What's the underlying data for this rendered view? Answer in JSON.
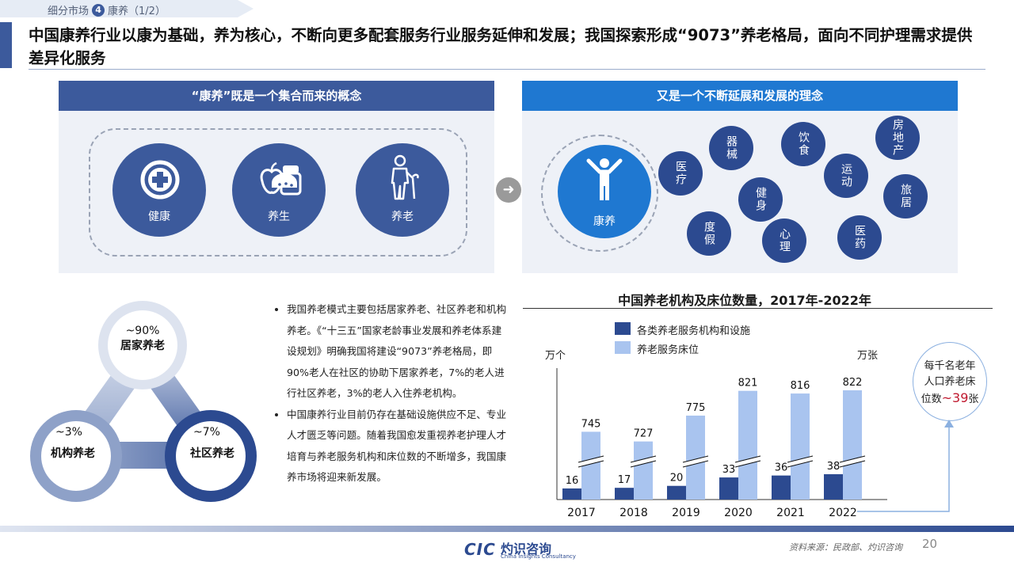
{
  "breadcrumb": {
    "section": "细分市场",
    "number": "4",
    "topic": "康养（1/2）"
  },
  "headline": "中国康养行业以康为基础，养为核心，不断向更多配套服务行业服务延伸和发展；我国探索形成“9073”养老格局，面向不同护理需求提供差异化服务",
  "left_panel": {
    "header": "“康养”既是一个集合而来的概念",
    "concepts": [
      {
        "label": "健康",
        "icon": "medical-cross-icon"
      },
      {
        "label": "养生",
        "icon": "food-supplement-icon"
      },
      {
        "label": "养老",
        "icon": "elderly-person-icon"
      }
    ]
  },
  "right_panel": {
    "header": "又是一个不断延展和发展的理念",
    "center": {
      "label": "康养",
      "icon": "person-arms-up-icon"
    },
    "bubbles": [
      "医疗",
      "器械",
      "饮食",
      "房地产",
      "运动",
      "旅居",
      "健身",
      "度假",
      "心理",
      "医药"
    ]
  },
  "triangle": {
    "top": {
      "pct": "~90%",
      "label": "居家养老"
    },
    "left": {
      "pct": "~3%",
      "label": "机构养老"
    },
    "right": {
      "pct": "~7%",
      "label": "社区养老"
    }
  },
  "bullets": [
    "我国养老模式主要包括居家养老、社区养老和机构养老。《“十三五”国家老龄事业发展和养老体系建设规划》明确我国将建设“9073”养老格局，即90%老人在社区的协助下居家养老，7%的老人进行社区养老，3%的老人入住养老机构。",
    "中国康养行业目前仍存在基础设施供应不足、专业人才匮乏等问题。随着我国愈发重视养老护理人才培育与养老服务机构和床位数的不断增多，我国康养市场将迎来新发展。"
  ],
  "chart_data": {
    "type": "bar",
    "title": "中国养老机构及床位数量，2017年-2022年",
    "categories": [
      "2017",
      "2018",
      "2019",
      "2020",
      "2021",
      "2022"
    ],
    "series": [
      {
        "name": "各类养老服务机构和设施",
        "values": [
          16,
          17,
          20,
          33,
          36,
          38
        ],
        "unit": "万个",
        "color": "#2c4a90"
      },
      {
        "name": "养老服务床位",
        "values": [
          745,
          727,
          775,
          821,
          816,
          822
        ],
        "unit": "万张",
        "color": "#a9c4ef"
      }
    ],
    "left_unit": "万个",
    "right_unit": "万张",
    "axis_break": true,
    "callout": {
      "line1": "每千名老年",
      "line2": "人口养老床",
      "line3_prefix": "位数",
      "value": "~39",
      "line3_suffix": "张"
    }
  },
  "footer": {
    "logo_mark": "CIC",
    "logo_cn": "灼识咨询",
    "logo_en": "China Insights Consultancy",
    "source": "资料来源：民政部、灼识咨询",
    "page": "20"
  },
  "colors": {
    "primary": "#3c5a9c",
    "accent_blue": "#1f78d1",
    "dark_bar": "#2c4a90",
    "light_bar": "#a9c4ef"
  }
}
